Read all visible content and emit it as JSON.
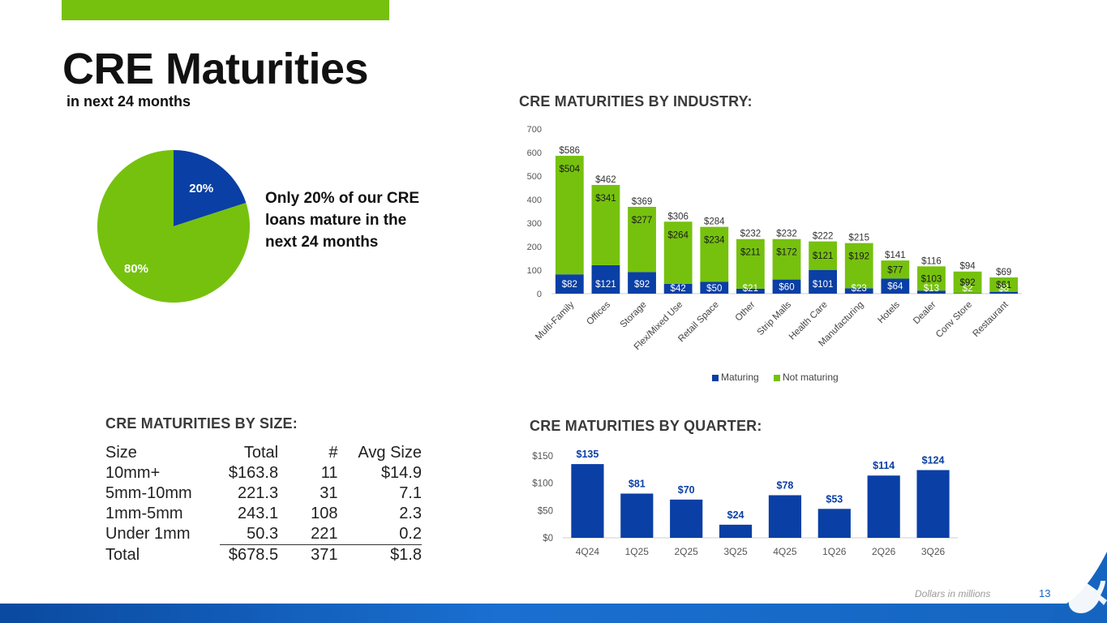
{
  "header": {
    "title": "CRE Maturities",
    "subtitle": "in next 24 months"
  },
  "callout": {
    "line1": "Only 20% of our CRE",
    "line2": "loans mature in the",
    "line3": "next 24 months"
  },
  "sections": {
    "industry": "CRE MATURITIES BY INDUSTRY:",
    "size": "CRE MATURITIES BY SIZE:",
    "quarter": "CRE MATURITIES BY QUARTER:"
  },
  "colors": {
    "maturing": "#0a3fa5",
    "not_maturing": "#76c10e",
    "axis_text": "#555555",
    "label_light": "#ffffff"
  },
  "chart_data": [
    {
      "id": "pie",
      "type": "pie",
      "title": "",
      "slices": [
        {
          "label": "20%",
          "value": 20,
          "color": "#0a3fa5"
        },
        {
          "label": "80%",
          "value": 80,
          "color": "#76c10e"
        }
      ]
    },
    {
      "id": "industry",
      "type": "bar",
      "stacked": true,
      "title": "CRE MATURITIES BY INDUSTRY:",
      "categories": [
        "Multi-Family",
        "Offices",
        "Storage",
        "Flex/Mixed Use",
        "Retail Space",
        "Other",
        "Strip Malls",
        "Health Care",
        "Manufacturing",
        "Hotels",
        "Dealer",
        "Conv Store",
        "Restaurant"
      ],
      "series": [
        {
          "name": "Maturing",
          "color": "#0a3fa5",
          "values": [
            82,
            121,
            92,
            42,
            50,
            21,
            60,
            101,
            23,
            64,
            13,
            2,
            8
          ],
          "labels": [
            "$82",
            "$121",
            "$92",
            "$42",
            "$50",
            "$21",
            "$60",
            "$101",
            "$23",
            "$64",
            "$13",
            "$2",
            "$8"
          ]
        },
        {
          "name": "Not maturing",
          "color": "#76c10e",
          "values": [
            504,
            341,
            277,
            264,
            234,
            211,
            172,
            121,
            192,
            77,
            103,
            92,
            61
          ],
          "labels": [
            "$504",
            "$341",
            "$277",
            "$264",
            "$234",
            "$211",
            "$172",
            "$121",
            "$192",
            "$77",
            "$103",
            "$92",
            "$61"
          ]
        }
      ],
      "totals": [
        586,
        462,
        369,
        306,
        284,
        232,
        232,
        222,
        215,
        141,
        116,
        94,
        69
      ],
      "total_labels": [
        "$586",
        "$462",
        "$369",
        "$306",
        "$284",
        "$232",
        "$232",
        "$222",
        "$215",
        "$141",
        "$116",
        "$94",
        "$69"
      ],
      "yticks": [
        "0",
        "100",
        "200",
        "300",
        "400",
        "500",
        "600",
        "700"
      ],
      "ylim": [
        0,
        700
      ],
      "legend": [
        "Maturing",
        "Not maturing"
      ],
      "legend_position": "bottom"
    },
    {
      "id": "quarter",
      "type": "bar",
      "title": "CRE MATURITIES BY QUARTER:",
      "categories": [
        "4Q24",
        "1Q25",
        "2Q25",
        "3Q25",
        "4Q25",
        "1Q26",
        "2Q26",
        "3Q26"
      ],
      "values": [
        135,
        81,
        70,
        24,
        78,
        53,
        114,
        124
      ],
      "labels": [
        "$135",
        "$81",
        "$70",
        "$24",
        "$78",
        "$53",
        "$114",
        "$124"
      ],
      "yticks": [
        "$0",
        "$50",
        "$100",
        "$150"
      ],
      "ylim": [
        0,
        150
      ],
      "color": "#0a3fa5"
    }
  ],
  "size_table": {
    "headers": [
      "Size",
      "Total",
      "#",
      "Avg Size"
    ],
    "rows": [
      [
        "10mm+",
        "$163.8",
        "11",
        "$14.9"
      ],
      [
        "5mm-10mm",
        "221.3",
        "31",
        "7.1"
      ],
      [
        "1mm-5mm",
        "243.1",
        "108",
        "2.3"
      ],
      [
        "Under 1mm",
        "50.3",
        "221",
        "0.2"
      ],
      [
        "Total",
        "$678.5",
        "371",
        "$1.8"
      ]
    ]
  },
  "footer": {
    "note": "Dollars in millions",
    "page": "13"
  }
}
